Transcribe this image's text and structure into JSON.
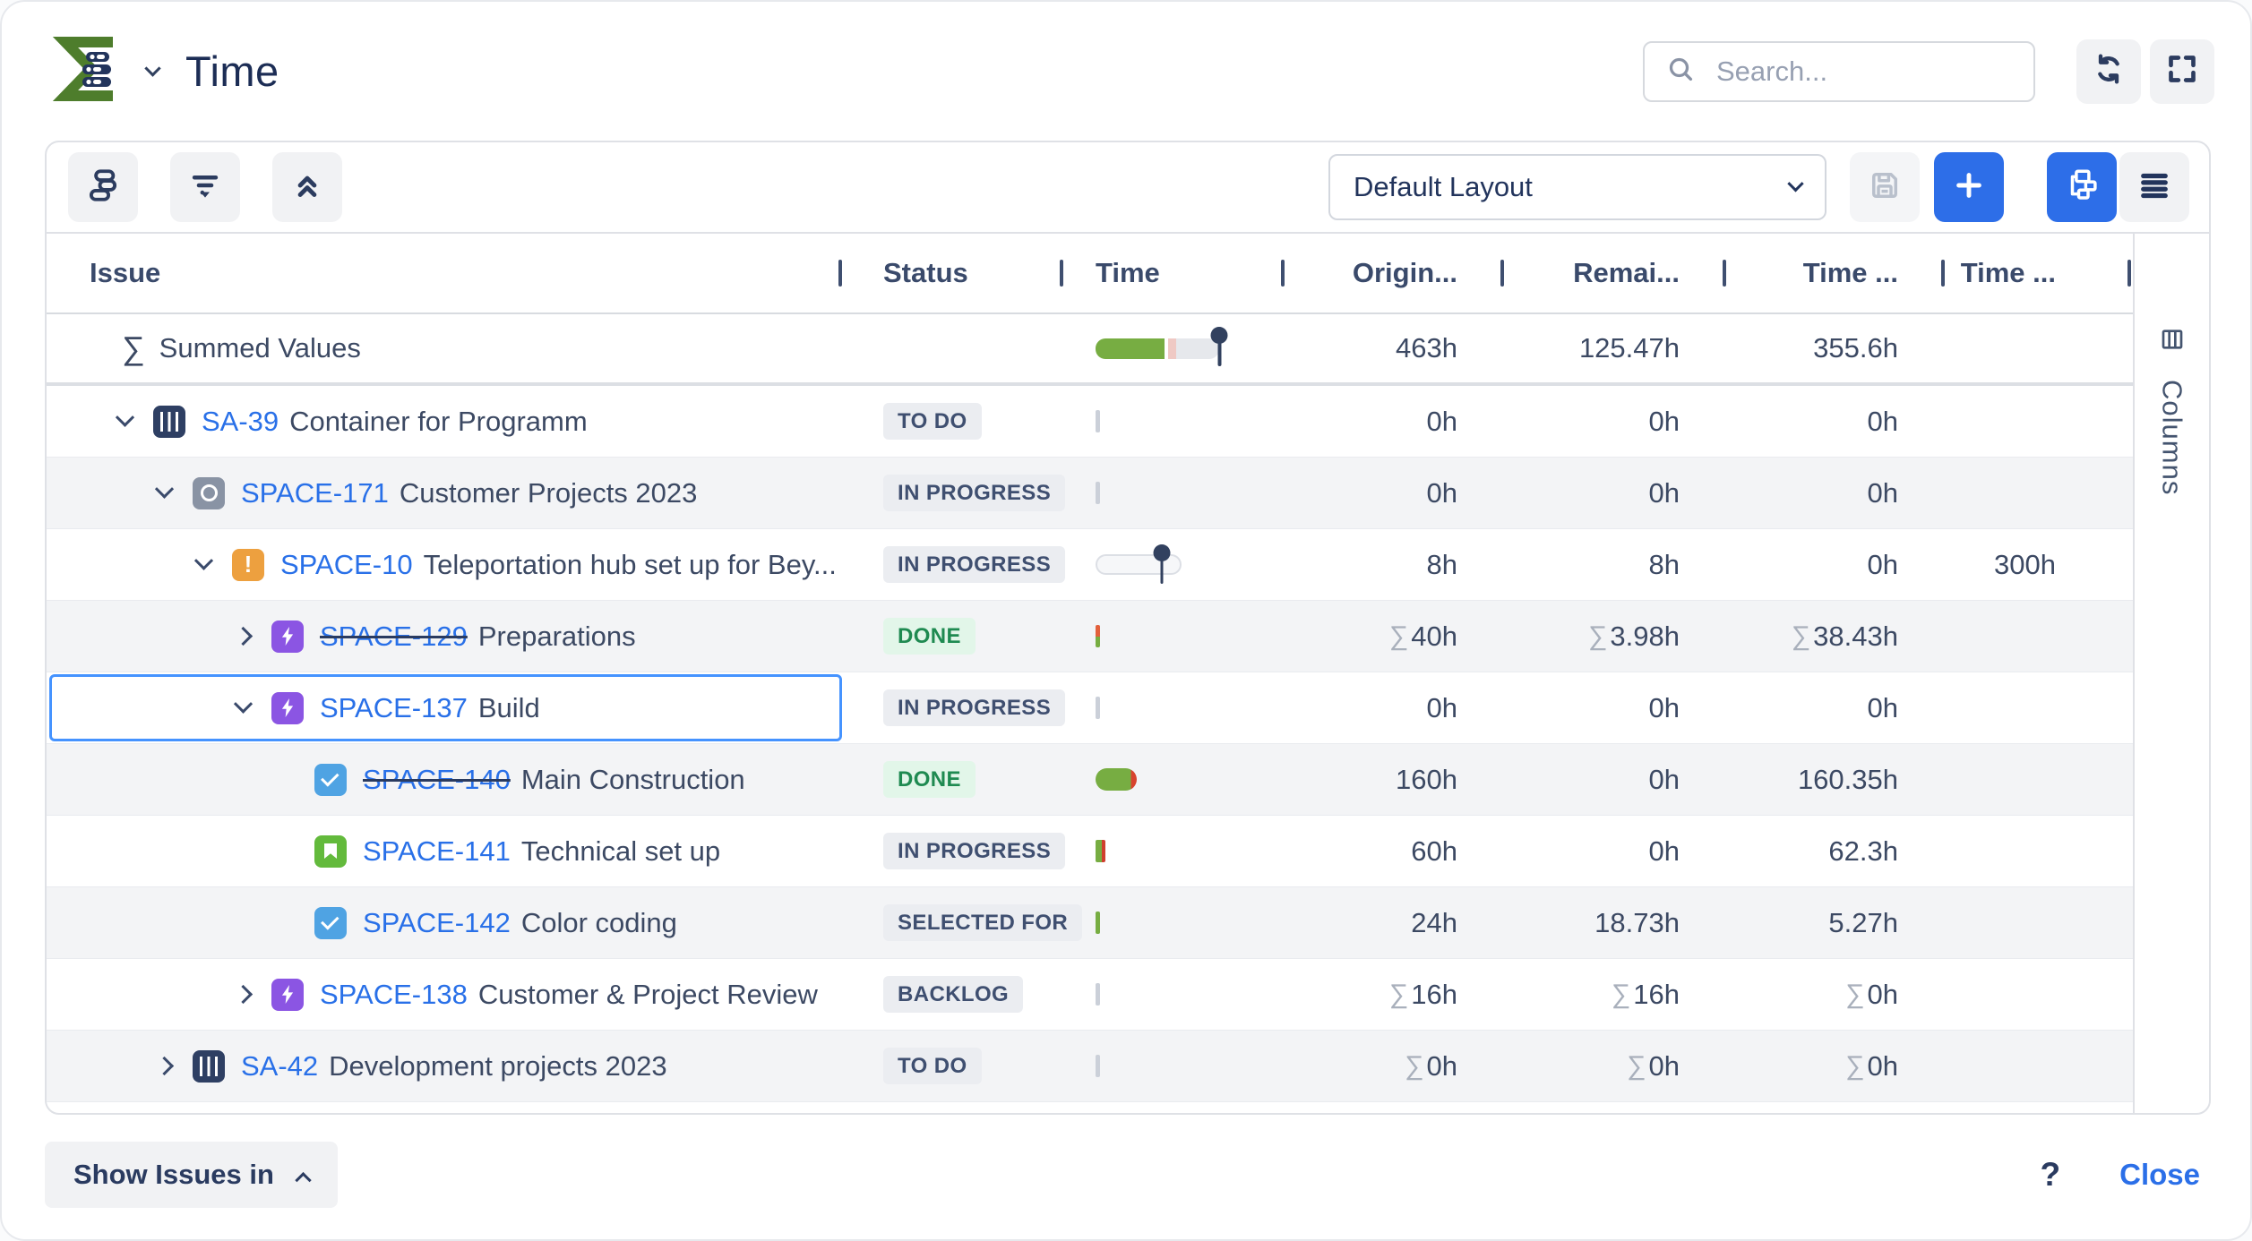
{
  "header": {
    "logo_icon": "sigma-app-logo-icon",
    "logo_chevron_icon": "chevron-down-icon",
    "title": "Time",
    "search": {
      "icon": "search-icon",
      "placeholder": "Search..."
    },
    "refresh_icon": "refresh-icon",
    "fullscreen_icon": "fullscreen-icon"
  },
  "toolbar": {
    "group_by_icon": "group-by-icon",
    "filter_icon": "filter-icon",
    "collapse_all_icon": "collapse-all-icon",
    "layout_select": {
      "value": "Default Layout"
    },
    "save_icon": "save-icon",
    "add_icon": "plus-icon",
    "tree_view_icon": "tree-view-icon",
    "list_view_icon": "list-view-icon"
  },
  "side_panel": {
    "icon": "columns-icon",
    "label": "Columns"
  },
  "colors": {
    "accent_blue": "#2d6ee8",
    "link_blue": "#2970e8",
    "navy_text": "#22345c",
    "progress_green": "#77ad42",
    "overrun_red": "#d8432e",
    "overrun_pink": "#efc9c4",
    "done_green": "#1f8a51",
    "done_chip_bg": "#e2f6e9",
    "chip_bg": "#ebedf1",
    "row_stripe": "#f3f4f6",
    "epic_purple": "#8b55e3",
    "task_blue": "#4fa3e3",
    "story_green": "#63ba3c",
    "alert_orange": "#eda03f"
  },
  "table": {
    "sigma_char": "∑",
    "columns": [
      {
        "label": "Issue"
      },
      {
        "label": "Status"
      },
      {
        "label": "Time"
      },
      {
        "label": "Origin..."
      },
      {
        "label": "Remai..."
      },
      {
        "label": "Time ..."
      },
      {
        "label": "Time ..."
      }
    ],
    "summary_row": {
      "label": "Summed Values",
      "bar": {
        "kind": "summary",
        "green_pct": 56,
        "gap_pct": 3,
        "overrun_pct": 6,
        "pin_pct": 100
      },
      "values": {
        "original": "463h",
        "remaining": "125.47h",
        "spent": "355.6h",
        "extra": ""
      }
    },
    "rows": [
      {
        "key": "SA-39",
        "summary": "Container for Programm",
        "level": 0,
        "chevron": "down",
        "icon": "container-icon",
        "struck": false,
        "selected": false,
        "status": {
          "label": "TO DO",
          "variant": "default"
        },
        "bar": {
          "kind": "tick-grey"
        },
        "values": {
          "original": {
            "t": "0h",
            "sigma": false
          },
          "remaining": {
            "t": "0h",
            "sigma": false
          },
          "spent": {
            "t": "0h",
            "sigma": false
          },
          "extra": {
            "t": "",
            "sigma": false
          }
        }
      },
      {
        "key": "SPACE-171",
        "summary": "Customer Projects 2023",
        "level": 1,
        "chevron": "down",
        "icon": "circle-icon",
        "struck": false,
        "selected": false,
        "status": {
          "label": "IN PROGRESS",
          "variant": "default"
        },
        "bar": {
          "kind": "tick-grey"
        },
        "values": {
          "original": {
            "t": "0h",
            "sigma": false
          },
          "remaining": {
            "t": "0h",
            "sigma": false
          },
          "spent": {
            "t": "0h",
            "sigma": false
          },
          "extra": {
            "t": "",
            "sigma": false
          }
        }
      },
      {
        "key": "SPACE-10",
        "summary": "Teleportation hub set up for Bey...",
        "level": 2,
        "chevron": "down",
        "icon": "alert-icon",
        "struck": false,
        "selected": false,
        "status": {
          "label": "IN PROGRESS",
          "variant": "default"
        },
        "bar": {
          "kind": "track-pin",
          "pin_pct": 78
        },
        "values": {
          "original": {
            "t": "8h",
            "sigma": false
          },
          "remaining": {
            "t": "8h",
            "sigma": false
          },
          "spent": {
            "t": "0h",
            "sigma": false
          },
          "extra": {
            "t": "300h",
            "sigma": false
          }
        }
      },
      {
        "key": "SPACE-129",
        "summary": "Preparations",
        "level": 3,
        "chevron": "right",
        "icon": "epic-icon",
        "struck": true,
        "selected": false,
        "status": {
          "label": "DONE",
          "variant": "done"
        },
        "bar": {
          "kind": "tick-orange-green"
        },
        "values": {
          "original": {
            "t": "40h",
            "sigma": true
          },
          "remaining": {
            "t": "3.98h",
            "sigma": true
          },
          "spent": {
            "t": "38.43h",
            "sigma": true
          },
          "extra": {
            "t": "",
            "sigma": false
          }
        }
      },
      {
        "key": "SPACE-137",
        "summary": "Build",
        "level": 3,
        "chevron": "down",
        "icon": "epic-icon",
        "struck": false,
        "selected": true,
        "status": {
          "label": "IN PROGRESS",
          "variant": "default"
        },
        "bar": {
          "kind": "tick-grey"
        },
        "values": {
          "original": {
            "t": "0h",
            "sigma": false
          },
          "remaining": {
            "t": "0h",
            "sigma": false
          },
          "spent": {
            "t": "0h",
            "sigma": false
          },
          "extra": {
            "t": "",
            "sigma": false
          }
        }
      },
      {
        "key": "SPACE-140",
        "summary": "Main Construction",
        "level": 4,
        "chevron": null,
        "icon": "task-icon",
        "struck": true,
        "selected": false,
        "status": {
          "label": "DONE",
          "variant": "done"
        },
        "bar": {
          "kind": "pill-green-red"
        },
        "values": {
          "original": {
            "t": "160h",
            "sigma": false
          },
          "remaining": {
            "t": "0h",
            "sigma": false
          },
          "spent": {
            "t": "160.35h",
            "sigma": false
          },
          "extra": {
            "t": "",
            "sigma": false
          }
        }
      },
      {
        "key": "SPACE-141",
        "summary": "Technical set up",
        "level": 4,
        "chevron": null,
        "icon": "story-icon",
        "struck": false,
        "selected": false,
        "status": {
          "label": "IN PROGRESS",
          "variant": "default"
        },
        "bar": {
          "kind": "tick-green-red"
        },
        "values": {
          "original": {
            "t": "60h",
            "sigma": false
          },
          "remaining": {
            "t": "0h",
            "sigma": false
          },
          "spent": {
            "t": "62.3h",
            "sigma": false
          },
          "extra": {
            "t": "",
            "sigma": false
          }
        }
      },
      {
        "key": "SPACE-142",
        "summary": "Color coding",
        "level": 4,
        "chevron": null,
        "icon": "task-icon",
        "struck": false,
        "selected": false,
        "status": {
          "label": "SELECTED FOR",
          "variant": "default"
        },
        "bar": {
          "kind": "tick-green"
        },
        "values": {
          "original": {
            "t": "24h",
            "sigma": false
          },
          "remaining": {
            "t": "18.73h",
            "sigma": false
          },
          "spent": {
            "t": "5.27h",
            "sigma": false
          },
          "extra": {
            "t": "",
            "sigma": false
          }
        }
      },
      {
        "key": "SPACE-138",
        "summary": "Customer & Project Review",
        "level": 3,
        "chevron": "right",
        "icon": "epic-icon",
        "struck": false,
        "selected": false,
        "status": {
          "label": "BACKLOG",
          "variant": "default"
        },
        "bar": {
          "kind": "tick-grey"
        },
        "values": {
          "original": {
            "t": "16h",
            "sigma": true
          },
          "remaining": {
            "t": "16h",
            "sigma": true
          },
          "spent": {
            "t": "0h",
            "sigma": true
          },
          "extra": {
            "t": "",
            "sigma": false
          }
        }
      },
      {
        "key": "SA-42",
        "summary": "Development projects 2023",
        "level": 1,
        "chevron": "right",
        "icon": "container-icon",
        "struck": false,
        "selected": false,
        "status": {
          "label": "TO DO",
          "variant": "default"
        },
        "bar": {
          "kind": "tick-grey"
        },
        "values": {
          "original": {
            "t": "0h",
            "sigma": true
          },
          "remaining": {
            "t": "0h",
            "sigma": true
          },
          "spent": {
            "t": "0h",
            "sigma": true
          },
          "extra": {
            "t": "",
            "sigma": false
          }
        }
      }
    ]
  },
  "footer": {
    "show_issues_label": "Show Issues in",
    "help_label": "?",
    "close_label": "Close"
  }
}
